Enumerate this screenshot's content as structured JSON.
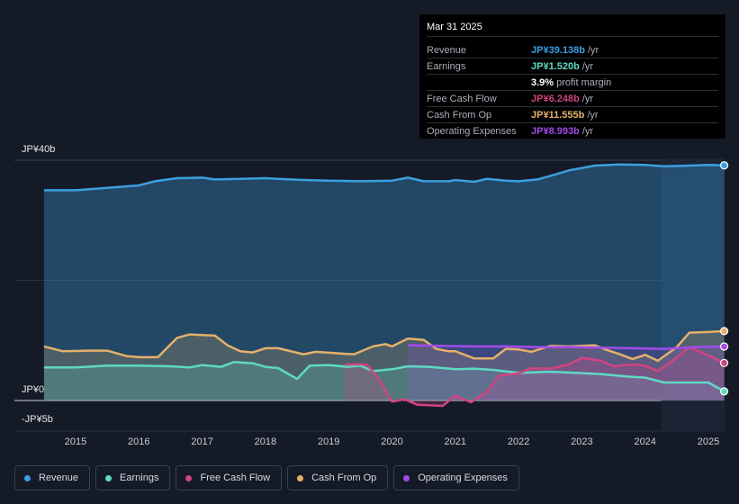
{
  "chart_data": {
    "type": "area",
    "title": "",
    "x_ticks": [
      "2015",
      "2016",
      "2017",
      "2018",
      "2019",
      "2020",
      "2021",
      "2022",
      "2023",
      "2024",
      "2025"
    ],
    "y_ticks": [
      "JP¥40b",
      "JP¥0",
      "-JP¥5b"
    ],
    "ylim": [
      -5,
      40
    ],
    "forecast_start": 2024.25,
    "series": [
      {
        "name": "Revenue",
        "color": "#3b9fe0",
        "points": [
          [
            2014.5,
            35
          ],
          [
            2015.0,
            35
          ],
          [
            2015.5,
            35.4
          ],
          [
            2016.0,
            35.8
          ],
          [
            2016.25,
            36.5
          ],
          [
            2016.6,
            37
          ],
          [
            2017.0,
            37.1
          ],
          [
            2017.2,
            36.8
          ],
          [
            2017.6,
            36.9
          ],
          [
            2018.0,
            37
          ],
          [
            2018.2,
            36.9
          ],
          [
            2018.6,
            36.7
          ],
          [
            2019.0,
            36.6
          ],
          [
            2019.5,
            36.5
          ],
          [
            2020.0,
            36.6
          ],
          [
            2020.25,
            37.1
          ],
          [
            2020.5,
            36.5
          ],
          [
            2020.9,
            36.5
          ],
          [
            2021.0,
            36.7
          ],
          [
            2021.3,
            36.4
          ],
          [
            2021.5,
            36.9
          ],
          [
            2021.8,
            36.6
          ],
          [
            2022.0,
            36.5
          ],
          [
            2022.3,
            36.8
          ],
          [
            2022.5,
            37.4
          ],
          [
            2022.8,
            38.3
          ],
          [
            2023.0,
            38.7
          ],
          [
            2023.2,
            39.1
          ],
          [
            2023.6,
            39.3
          ],
          [
            2024.0,
            39.2
          ],
          [
            2024.3,
            39.0
          ],
          [
            2024.7,
            39.1
          ],
          [
            2025.0,
            39.2
          ],
          [
            2025.25,
            39.138
          ]
        ]
      },
      {
        "name": "Earnings",
        "color": "#5fd9c4",
        "points": [
          [
            2014.5,
            5.5
          ],
          [
            2015.0,
            5.5
          ],
          [
            2015.5,
            5.8
          ],
          [
            2016.0,
            5.8
          ],
          [
            2016.5,
            5.7
          ],
          [
            2016.8,
            5.5
          ],
          [
            2017.0,
            5.9
          ],
          [
            2017.3,
            5.6
          ],
          [
            2017.5,
            6.4
          ],
          [
            2017.8,
            6.2
          ],
          [
            2018.0,
            5.6
          ],
          [
            2018.2,
            5.4
          ],
          [
            2018.5,
            3.6
          ],
          [
            2018.7,
            5.8
          ],
          [
            2019.0,
            5.9
          ],
          [
            2019.3,
            5.6
          ],
          [
            2019.5,
            5.8
          ],
          [
            2019.7,
            4.9
          ],
          [
            2020.0,
            5.2
          ],
          [
            2020.25,
            5.7
          ],
          [
            2020.6,
            5.6
          ],
          [
            2021.0,
            5.2
          ],
          [
            2021.3,
            5.3
          ],
          [
            2021.6,
            5.1
          ],
          [
            2022.0,
            4.6
          ],
          [
            2022.5,
            4.8
          ],
          [
            2022.9,
            4.6
          ],
          [
            2023.3,
            4.4
          ],
          [
            2023.7,
            4.0
          ],
          [
            2024.0,
            3.8
          ],
          [
            2024.3,
            3.0
          ],
          [
            2024.6,
            3.0
          ],
          [
            2025.0,
            3.0
          ],
          [
            2025.25,
            1.52
          ]
        ]
      },
      {
        "name": "Free Cash Flow",
        "color": "#d0457f",
        "points": [
          [
            2019.25,
            6.0
          ],
          [
            2019.6,
            6.0
          ],
          [
            2019.8,
            3.5
          ],
          [
            2020.0,
            -0.2
          ],
          [
            2020.2,
            0.2
          ],
          [
            2020.4,
            -0.7
          ],
          [
            2020.8,
            -0.9
          ],
          [
            2021.0,
            0.8
          ],
          [
            2021.25,
            -0.3
          ],
          [
            2021.5,
            1.5
          ],
          [
            2021.7,
            4.2
          ],
          [
            2022.0,
            4.5
          ],
          [
            2022.2,
            5.4
          ],
          [
            2022.5,
            5.3
          ],
          [
            2022.8,
            6.0
          ],
          [
            2023.0,
            7.1
          ],
          [
            2023.3,
            6.6
          ],
          [
            2023.5,
            5.7
          ],
          [
            2023.8,
            6.0
          ],
          [
            2024.0,
            5.8
          ],
          [
            2024.2,
            4.9
          ],
          [
            2024.4,
            6.3
          ],
          [
            2024.7,
            8.9
          ],
          [
            2025.0,
            7.5
          ],
          [
            2025.25,
            6.248
          ]
        ]
      },
      {
        "name": "Cash From Op",
        "color": "#e5b06a",
        "points": [
          [
            2014.5,
            9.0
          ],
          [
            2014.8,
            8.2
          ],
          [
            2015.2,
            8.3
          ],
          [
            2015.5,
            8.3
          ],
          [
            2015.8,
            7.4
          ],
          [
            2016.0,
            7.2
          ],
          [
            2016.3,
            7.2
          ],
          [
            2016.6,
            10.4
          ],
          [
            2016.8,
            11.0
          ],
          [
            2017.2,
            10.8
          ],
          [
            2017.4,
            9.2
          ],
          [
            2017.6,
            8.2
          ],
          [
            2017.8,
            8.0
          ],
          [
            2018.0,
            8.7
          ],
          [
            2018.2,
            8.7
          ],
          [
            2018.6,
            7.7
          ],
          [
            2018.8,
            8.1
          ],
          [
            2019.2,
            7.8
          ],
          [
            2019.4,
            7.7
          ],
          [
            2019.7,
            9.0
          ],
          [
            2019.9,
            9.4
          ],
          [
            2020.0,
            9.0
          ],
          [
            2020.25,
            10.3
          ],
          [
            2020.5,
            10.1
          ],
          [
            2020.7,
            8.6
          ],
          [
            2020.9,
            8.2
          ],
          [
            2021.0,
            8.2
          ],
          [
            2021.3,
            7.0
          ],
          [
            2021.6,
            7.0
          ],
          [
            2021.8,
            8.6
          ],
          [
            2022.0,
            8.5
          ],
          [
            2022.2,
            8.1
          ],
          [
            2022.5,
            9.1
          ],
          [
            2022.8,
            9.0
          ],
          [
            2023.2,
            9.2
          ],
          [
            2023.4,
            8.4
          ],
          [
            2023.6,
            7.7
          ],
          [
            2023.8,
            6.9
          ],
          [
            2024.0,
            7.6
          ],
          [
            2024.2,
            6.6
          ],
          [
            2024.5,
            8.9
          ],
          [
            2024.7,
            11.3
          ],
          [
            2025.0,
            11.4
          ],
          [
            2025.25,
            11.555
          ]
        ]
      },
      {
        "name": "Operating Expenses",
        "color": "#a24bea",
        "points": [
          [
            2020.25,
            9.2
          ],
          [
            2020.8,
            9.1
          ],
          [
            2021.3,
            9.0
          ],
          [
            2021.8,
            9.0
          ],
          [
            2022.3,
            8.9
          ],
          [
            2022.8,
            8.9
          ],
          [
            2023.3,
            8.8
          ],
          [
            2023.8,
            8.7
          ],
          [
            2024.3,
            8.6
          ],
          [
            2024.8,
            8.9
          ],
          [
            2025.25,
            8.993
          ]
        ]
      }
    ]
  },
  "tooltip": {
    "date": "Mar 31 2025",
    "rows": [
      {
        "label": "Revenue",
        "value": "JP¥39.138b",
        "unit": "/yr",
        "color": "#3b9fe0"
      },
      {
        "label": "Earnings",
        "value": "JP¥1.520b",
        "unit": "/yr",
        "color": "#5fd9c4"
      },
      {
        "label": "",
        "value": "3.9%",
        "unit": "profit margin",
        "color": "#ffffff"
      },
      {
        "label": "Free Cash Flow",
        "value": "JP¥6.248b",
        "unit": "/yr",
        "color": "#d0457f"
      },
      {
        "label": "Cash From Op",
        "value": "JP¥11.555b",
        "unit": "/yr",
        "color": "#e5b06a"
      },
      {
        "label": "Operating Expenses",
        "value": "JP¥8.993b",
        "unit": "/yr",
        "color": "#a24bea"
      }
    ]
  },
  "legend": [
    {
      "label": "Revenue",
      "color": "#3b9fe0"
    },
    {
      "label": "Earnings",
      "color": "#5fd9c4"
    },
    {
      "label": "Free Cash Flow",
      "color": "#d0457f"
    },
    {
      "label": "Cash From Op",
      "color": "#e5b06a"
    },
    {
      "label": "Operating Expenses",
      "color": "#a24bea"
    }
  ]
}
